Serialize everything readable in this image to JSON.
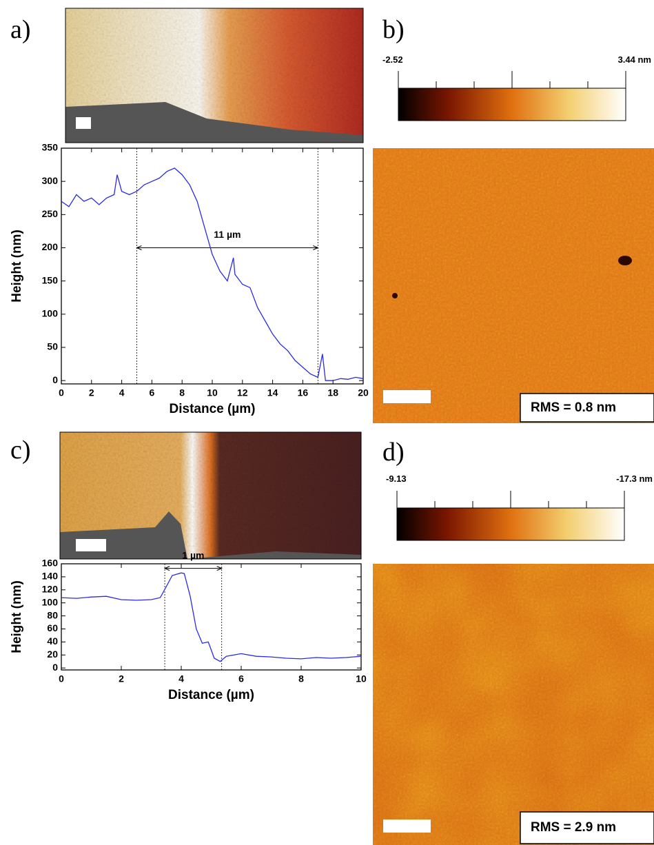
{
  "chart_data": [
    {
      "type": "line",
      "xlabel": "Distance (µm)",
      "ylabel": "Height (nm)",
      "x": [
        0,
        0.5,
        1,
        1.5,
        2,
        2.5,
        3,
        3.5,
        3.7,
        4,
        4.5,
        5,
        5.5,
        6,
        6.5,
        7,
        7.5,
        8,
        8.5,
        9,
        9.5,
        10,
        10.5,
        11,
        11.4,
        11.5,
        12,
        12.5,
        13,
        13.5,
        14,
        14.5,
        15,
        15.5,
        16,
        16.5,
        17,
        17.3,
        17.5,
        18,
        18.5,
        19,
        19.5,
        20
      ],
      "series": [
        {
          "color": "#2a2ae8",
          "values": [
            270,
            262,
            280,
            270,
            275,
            265,
            275,
            280,
            310,
            285,
            280,
            285,
            295,
            300,
            305,
            315,
            320,
            310,
            295,
            270,
            230,
            190,
            165,
            150,
            185,
            160,
            145,
            140,
            110,
            90,
            70,
            55,
            45,
            30,
            20,
            10,
            5,
            40,
            0,
            0,
            3,
            2,
            5,
            3
          ]
        }
      ],
      "xlim": [
        0,
        20
      ],
      "ylim": [
        -5,
        350
      ],
      "xticks": [
        0,
        2,
        4,
        6,
        8,
        10,
        12,
        14,
        16,
        18,
        20
      ],
      "yticks": [
        0,
        50,
        100,
        150,
        200,
        250,
        300,
        350
      ],
      "markers": [
        5,
        17
      ],
      "annotation": {
        "text": "11 µm",
        "y": 200
      }
    },
    {
      "type": "line",
      "xlabel": "Distance (µm)",
      "ylabel": "Height (nm)",
      "x": [
        0,
        0.5,
        1,
        1.5,
        2,
        2.5,
        3,
        3.3,
        3.5,
        3.7,
        4,
        4.1,
        4.3,
        4.5,
        4.7,
        4.9,
        5.1,
        5.3,
        5.5,
        6,
        6.5,
        7,
        7.5,
        8,
        8.5,
        9,
        9.5,
        10
      ],
      "series": [
        {
          "color": "#2a2ae8",
          "values": [
            108,
            107,
            109,
            110,
            105,
            104,
            105,
            108,
            125,
            142,
            146,
            145,
            110,
            60,
            38,
            40,
            15,
            10,
            18,
            22,
            18,
            17,
            15,
            14,
            16,
            15,
            16,
            18
          ]
        }
      ],
      "xlim": [
        0,
        10
      ],
      "ylim": [
        -3,
        160
      ],
      "xticks": [
        0,
        2,
        4,
        6,
        8,
        10
      ],
      "yticks": [
        0,
        20,
        40,
        60,
        80,
        100,
        120,
        140,
        160
      ],
      "markers": [
        3.45,
        5.35
      ],
      "annotation": {
        "text": "1 µm",
        "y": 153
      }
    }
  ],
  "panels": {
    "labels": [
      "a)",
      "b)",
      "c)",
      "d)"
    ]
  },
  "colorbars": [
    {
      "min_label": "-2.52",
      "max_label": "3.44 nm"
    },
    {
      "min_label": "-9.13",
      "max_label": "-17.3 nm"
    }
  ],
  "images": [
    {
      "rms": "RMS = 0.8 nm"
    },
    {
      "rms": "RMS = 2.9 nm"
    }
  ]
}
